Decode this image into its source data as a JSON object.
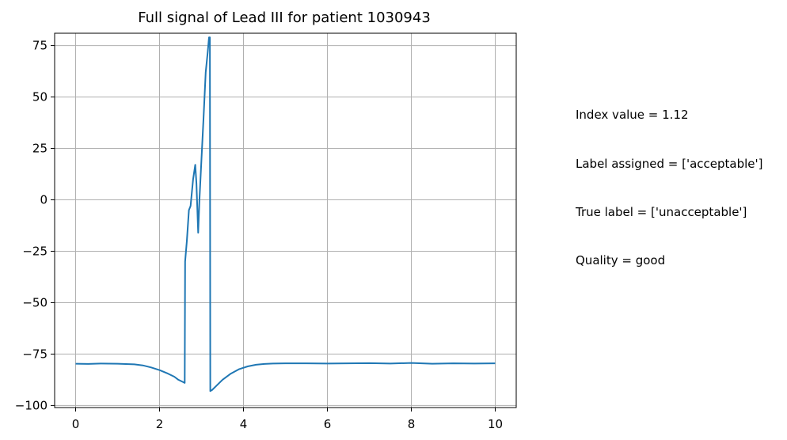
{
  "chart_data": {
    "type": "line",
    "title": "Full signal of Lead III for patient 1030943",
    "xlabel": "",
    "ylabel": "",
    "xlim": [
      -0.5,
      10.5
    ],
    "ylim": [
      -101,
      81
    ],
    "xticks": [
      0,
      2,
      4,
      6,
      8,
      10
    ],
    "xtick_labels": [
      "0",
      "2",
      "4",
      "6",
      "8",
      "10"
    ],
    "yticks": [
      75,
      50,
      25,
      0,
      -25,
      -50,
      -75,
      -100
    ],
    "ytick_labels": [
      "75",
      "50",
      "25",
      "0",
      "−25",
      "−50",
      "−75",
      "−100"
    ],
    "grid": true,
    "legend": "none",
    "series": [
      {
        "color": "#1f77b4",
        "x": [
          0,
          0.3,
          0.6,
          1.0,
          1.4,
          1.6,
          1.8,
          2.0,
          2.2,
          2.35,
          2.45,
          2.55,
          2.6,
          2.61,
          2.65,
          2.7,
          2.74,
          2.8,
          2.85,
          2.88,
          2.92,
          2.95,
          3.05,
          3.1,
          3.15,
          3.18,
          3.2,
          3.21,
          3.25,
          3.35,
          3.5,
          3.7,
          3.9,
          4.1,
          4.3,
          4.5,
          4.7,
          5.0,
          5.5,
          6.0,
          6.5,
          7.0,
          7.5,
          8.0,
          8.5,
          9.0,
          9.5,
          10.0
        ],
        "y": [
          -79.7,
          -79.8,
          -79.6,
          -79.7,
          -80.0,
          -80.5,
          -81.5,
          -82.8,
          -84.5,
          -86.0,
          -87.5,
          -88.5,
          -89.0,
          -30.0,
          -20.0,
          -5.0,
          -3.0,
          10.0,
          17.0,
          8.0,
          -16.0,
          0.0,
          40.0,
          62.0,
          72.0,
          79.0,
          79.0,
          -93.0,
          -92.5,
          -90.5,
          -87.5,
          -84.5,
          -82.3,
          -81.0,
          -80.2,
          -79.8,
          -79.6,
          -79.5,
          -79.5,
          -79.6,
          -79.5,
          -79.4,
          -79.6,
          -79.3,
          -79.7,
          -79.5,
          -79.6,
          -79.5
        ]
      }
    ]
  },
  "annotations": {
    "index_value": "Index value = 1.12",
    "label_assigned": "Label assigned = ['acceptable']",
    "true_label": "True label = ['unacceptable']",
    "quality": "Quality = good"
  }
}
